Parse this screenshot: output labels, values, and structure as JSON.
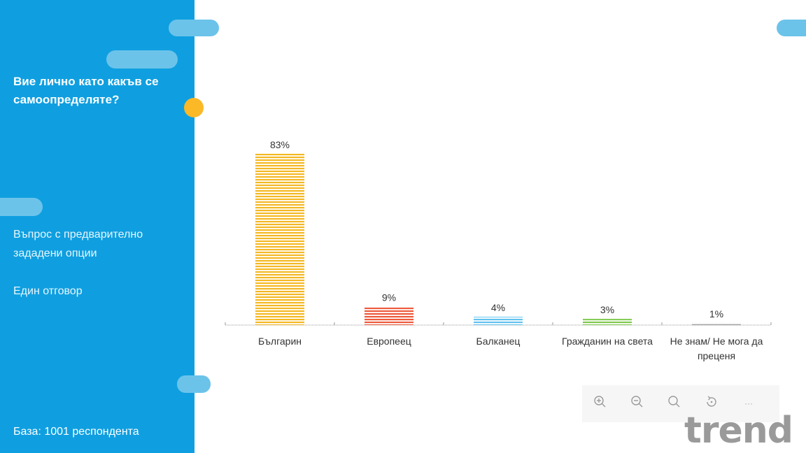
{
  "sidebar": {
    "question": "Вие лично като какъв се самоопределяте?",
    "description": "Въпрос с предварително зададени опции",
    "answer_type": "Един отговор",
    "base": "База:  1001 респондента"
  },
  "toolbar": {
    "icons": [
      "zoom-in-icon",
      "zoom-out-icon",
      "search-icon",
      "reset-icon",
      "more-icon"
    ]
  },
  "logo": {
    "text": "trend"
  },
  "colors": {
    "sidebar": "#0f9fe0",
    "accent_dot": "#fbb827",
    "pill": "#6cc3ea"
  },
  "chart_data": {
    "type": "bar",
    "categories": [
      "Българин",
      "Европеец",
      "Балканец",
      "Гражданин на света",
      "Не знам/ Не мога да преценя"
    ],
    "values": [
      83,
      9,
      4,
      3,
      1
    ],
    "labels": [
      "83%",
      "9%",
      "4%",
      "3%",
      "1%"
    ],
    "colors": [
      "#f4b823",
      "#ec5a3c",
      "#62c2ee",
      "#7ec94d",
      "#8c8c8c"
    ],
    "title": "",
    "xlabel": "",
    "ylabel": "",
    "ylim": [
      0,
      100
    ],
    "grid": false
  }
}
